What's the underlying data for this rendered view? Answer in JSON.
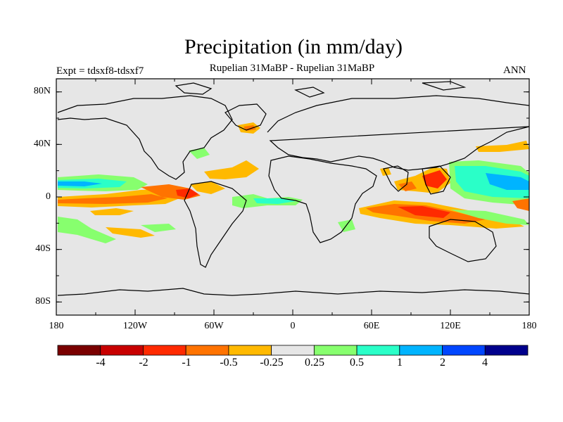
{
  "title": "Precipitation (in mm/day)",
  "subtitle": "Rupelian  31MaBP - Rupelian  31MaBP",
  "left_label": "Expt = tdsxf8-tdsxf7",
  "right_label": "ANN",
  "map": {
    "lat_labels": [
      "80N",
      "40N",
      "0",
      "40S",
      "80S"
    ],
    "lat_values": [
      80,
      40,
      0,
      -40,
      -80
    ],
    "lon_labels": [
      "180",
      "120W",
      "60W",
      "0",
      "60E",
      "120E",
      "180"
    ],
    "lon_values": [
      -180,
      -120,
      -60,
      0,
      60,
      120,
      180
    ],
    "background_color": "#e6e6e6"
  },
  "colorbar": {
    "colors": [
      "#7a0000",
      "#c80000",
      "#ff2a00",
      "#ff7300",
      "#ffb900",
      "#e6e6e6",
      "#87ff6e",
      "#2affc8",
      "#00b4ff",
      "#0046ff",
      "#00008c"
    ],
    "tick_labels": [
      "-4",
      "-2",
      "-1",
      "-0.5",
      "-0.25",
      "0.25",
      "0.5",
      "1",
      "2",
      "4"
    ]
  }
}
